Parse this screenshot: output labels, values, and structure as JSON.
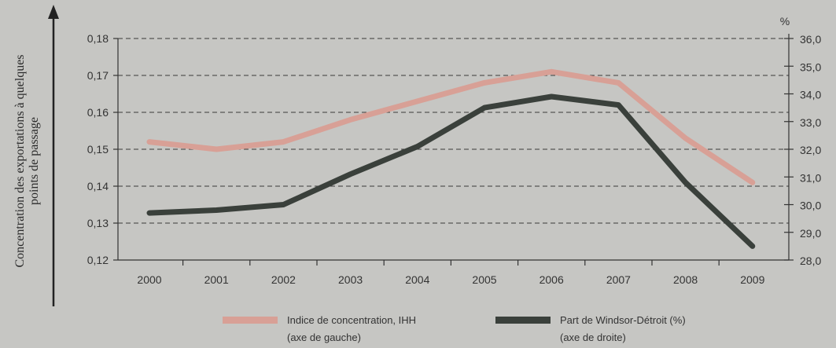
{
  "chart_data": {
    "type": "line",
    "title": "",
    "x": [
      "2000",
      "2001",
      "2002",
      "2003",
      "2004",
      "2005",
      "2006",
      "2007",
      "2008",
      "2009"
    ],
    "left_axis": {
      "label_line1": "Concentration des exportations à quelques",
      "label_line2": "points de passage",
      "ticks": [
        "0,12",
        "0,13",
        "0,14",
        "0,15",
        "0,16",
        "0,17",
        "0,18"
      ],
      "ylim": [
        0.12,
        0.18
      ]
    },
    "right_axis": {
      "unit": "%",
      "ticks": [
        "28,0",
        "29,0",
        "30,0",
        "31,0",
        "32,0",
        "33,0",
        "34,0",
        "35,0",
        "36,0"
      ],
      "ylim": [
        28.0,
        36.0
      ]
    },
    "grid": true,
    "legend_position": "bottom",
    "series": [
      {
        "name": "Indice de concentration, IHH",
        "name_line2": "(axe de gauche)",
        "axis": "left",
        "color": "#d8a096",
        "values": [
          0.152,
          0.15,
          0.152,
          0.158,
          0.163,
          0.168,
          0.171,
          0.168,
          0.153,
          0.141
        ]
      },
      {
        "name": "Part de Windsor-Détroit (%)",
        "name_line2": "(axe de droite)",
        "axis": "right",
        "color": "#3a403b",
        "values": [
          29.7,
          29.8,
          30.0,
          31.1,
          32.1,
          33.5,
          33.9,
          33.6,
          30.8,
          28.5
        ]
      }
    ]
  }
}
